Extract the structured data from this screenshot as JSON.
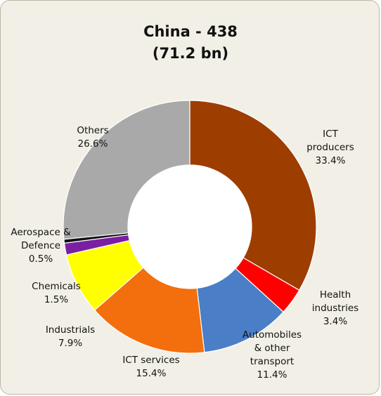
{
  "chart_data": {
    "type": "pie",
    "donut": true,
    "title": "China  - 438",
    "subtitle": "(71.2 bn)",
    "slices": [
      {
        "label": "ICT\nproducers",
        "value_label": "33.4%",
        "value": 33.4,
        "color": "#9e3d00"
      },
      {
        "label": "Health\nindustries",
        "value_label": "3.4%",
        "value": 3.4,
        "color": "#ff0000"
      },
      {
        "label": "Automobiles\n& other\ntransport",
        "value_label": "11.4%",
        "value": 11.4,
        "color": "#4a7ec6"
      },
      {
        "label": "ICT services",
        "value_label": "15.4%",
        "value": 15.4,
        "color": "#f36e0c"
      },
      {
        "label": "Industrials",
        "value_label": "7.9%",
        "value": 7.9,
        "color": "#ffff00"
      },
      {
        "label": "Chemicals",
        "value_label": "1.5%",
        "value": 1.5,
        "color": "#7b1fa2"
      },
      {
        "label": "Aerospace &\nDefence",
        "value_label": "0.5%",
        "value": 0.5,
        "color": "#111111"
      },
      {
        "label": "Others",
        "value_label": "26.6%",
        "value": 26.6,
        "color": "#a9a9a9"
      }
    ]
  },
  "colors": {
    "panel_background": "#f2f0e6",
    "hole": "#ffffff"
  }
}
